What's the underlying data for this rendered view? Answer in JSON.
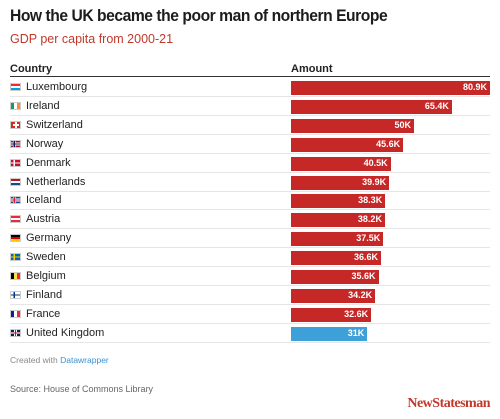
{
  "header": {
    "title": "How the UK became the poor man of northern Europe",
    "subtitle": "GDP per capita from 2000-21"
  },
  "columns": {
    "country": "Country",
    "amount": "Amount"
  },
  "chart_data": {
    "type": "bar",
    "title": "How the UK became the poor man of northern Europe",
    "subtitle": "GDP per capita from 2000-21",
    "orientation": "horizontal",
    "categories": [
      "Luxembourg",
      "Ireland",
      "Switzerland",
      "Norway",
      "Denmark",
      "Netherlands",
      "Iceland",
      "Austria",
      "Germany",
      "Sweden",
      "Belgium",
      "Finland",
      "France",
      "United Kingdom"
    ],
    "values": [
      80.9,
      65.4,
      50,
      45.6,
      40.5,
      39.9,
      38.3,
      38.2,
      37.5,
      36.6,
      35.6,
      34.2,
      32.6,
      31
    ],
    "value_labels": [
      "80.9K",
      "65.4K",
      "50K",
      "45.6K",
      "40.5K",
      "39.9K",
      "38.3K",
      "38.2K",
      "37.5K",
      "36.6K",
      "35.6K",
      "34.2K",
      "32.6K",
      "31K"
    ],
    "xlim": [
      0,
      80.9
    ],
    "xlabel": "",
    "ylabel": "",
    "grid": false,
    "colors": {
      "default": "#c62828",
      "highlight": "#3ea0d8"
    },
    "highlight": "United Kingdom"
  },
  "flags": [
    "luxembourg-flag-icon",
    "ireland-flag-icon",
    "switzerland-flag-icon",
    "norway-flag-icon",
    "denmark-flag-icon",
    "netherlands-flag-icon",
    "iceland-flag-icon",
    "austria-flag-icon",
    "germany-flag-icon",
    "sweden-flag-icon",
    "belgium-flag-icon",
    "finland-flag-icon",
    "france-flag-icon",
    "united-kingdom-flag-icon"
  ],
  "footer": {
    "credit_prefix": "Created with",
    "credit_tool": "Datawrapper",
    "source": "Source: House of Commons Library",
    "brand": "NewStatesman"
  }
}
